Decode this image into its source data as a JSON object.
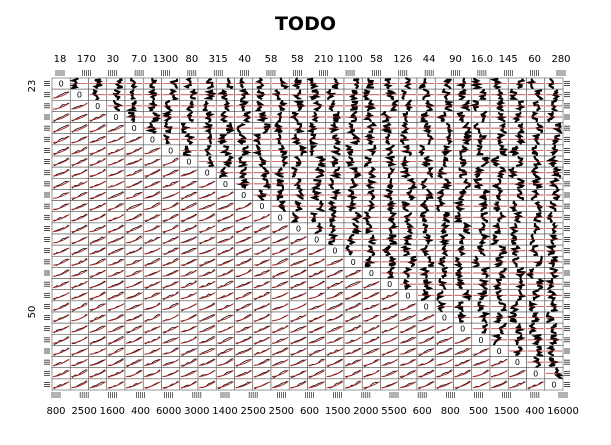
{
  "chart_data": {
    "type": "scatter",
    "plot_kind": "scatterplot-matrix",
    "title": "TODO",
    "n_variables": 28,
    "top_tick_labels": [
      "18",
      "170",
      "30",
      "7.0",
      "1300",
      "80",
      "315",
      "40",
      "58",
      "58",
      "210",
      "1100",
      "58",
      "126",
      "44",
      "90",
      "16.0",
      "145",
      "60",
      "280"
    ],
    "bottom_tick_labels": [
      "800",
      "2500",
      "1600",
      "400",
      "6000",
      "3000",
      "1400",
      "2500",
      "2500",
      "600",
      "1500",
      "2000",
      "5500",
      "600",
      "800",
      "500",
      "1500",
      "400",
      "16000"
    ],
    "left_tick_labels": [
      "23",
      "50"
    ],
    "diagonal_panel_label": "0",
    "grid": true,
    "colors": {
      "points": "#000000",
      "smoother": "#b22222",
      "panel_border": "#555555",
      "background": "#ffffff"
    }
  }
}
